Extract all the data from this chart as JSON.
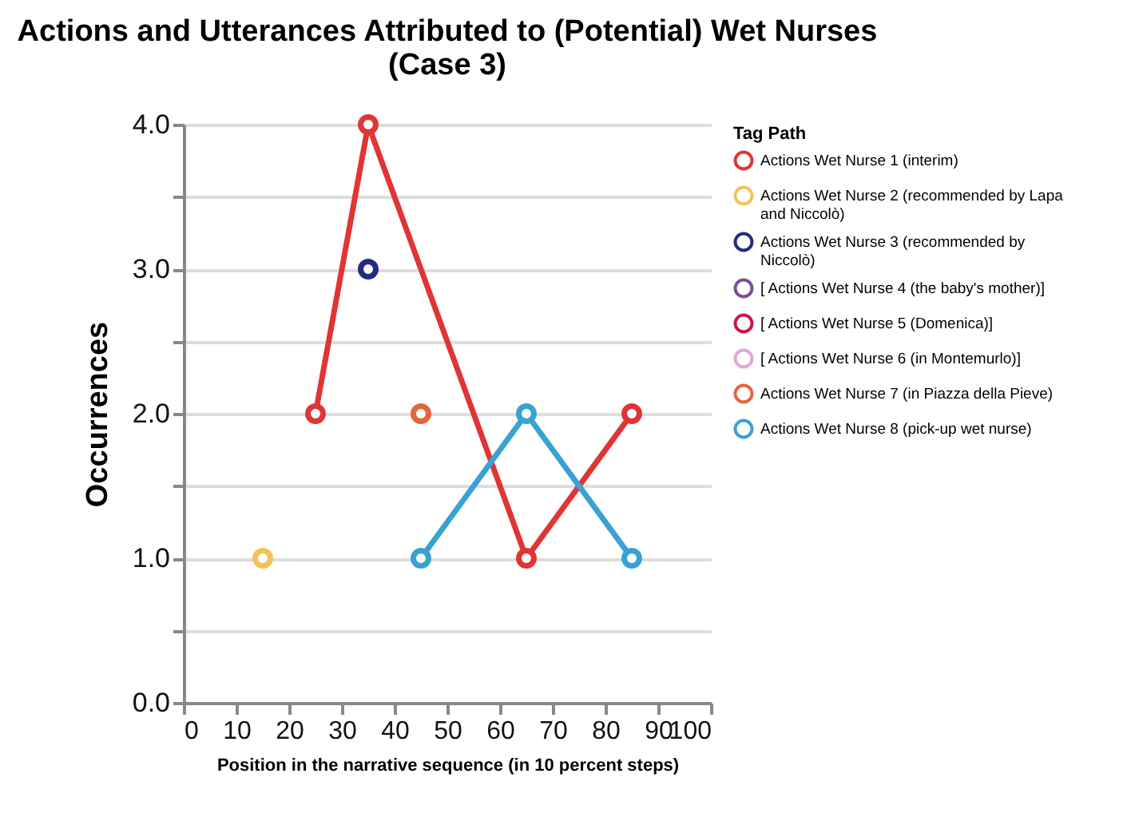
{
  "chart_data": {
    "type": "line",
    "title": "Actions and Utterances Attributed to (Potential) Wet Nurses\n(Case 3)",
    "xlabel": "Position in the narrative sequence (in 10 percent steps)",
    "ylabel": "Occurrences",
    "legend_title": "Tag Path",
    "xlim": [
      0,
      100
    ],
    "xticks": [
      0,
      10,
      20,
      30,
      40,
      50,
      60,
      70,
      80,
      90,
      100
    ],
    "ylim": [
      0,
      4
    ],
    "yticks": [
      {
        "value": 0,
        "label": "0.0"
      },
      {
        "value": 0.5,
        "label": null
      },
      {
        "value": 1,
        "label": "1.0"
      },
      {
        "value": 1.5,
        "label": null
      },
      {
        "value": 2,
        "label": "2.0"
      },
      {
        "value": 2.5,
        "label": null
      },
      {
        "value": 3,
        "label": "3.0"
      },
      {
        "value": 3.5,
        "label": null
      },
      {
        "value": 4,
        "label": "4.0"
      }
    ],
    "grid": "y",
    "legend": "right",
    "marker": "circle",
    "line_style": "solid",
    "series": [
      {
        "name": "Actions Wet Nurse 1 (interim)",
        "color": "#e03535",
        "x": [
          25,
          35,
          65,
          85
        ],
        "values": [
          2,
          4,
          1,
          2
        ]
      },
      {
        "name": "Actions Wet Nurse 2 (recommended by Lapa and Niccolò)",
        "color": "#f0c45a",
        "x": [
          15
        ],
        "values": [
          1
        ]
      },
      {
        "name": "Actions Wet Nurse 3 (recommended by Niccolò)",
        "color": "#232c82",
        "x": [
          35
        ],
        "values": [
          3
        ]
      },
      {
        "name": "[ Actions Wet Nurse 4 (the baby's mother)]",
        "color": "#7a4f9a"
      },
      {
        "name": "[ Actions Wet Nurse 5 (Domenica)]",
        "color": "#c81a4c"
      },
      {
        "name": "[ Actions Wet Nurse 6 (in Montemurlo)]",
        "color": "#e3a6d6"
      },
      {
        "name": "Actions Wet Nurse 7 (in Piazza della Pieve)",
        "color": "#e2663c",
        "x": [
          45
        ],
        "values": [
          2
        ]
      },
      {
        "name": "Actions Wet Nurse 8 (pick-up wet nurse)",
        "color": "#3aa2d2",
        "x": [
          45,
          65,
          85
        ],
        "values": [
          1,
          2,
          1
        ]
      }
    ]
  }
}
